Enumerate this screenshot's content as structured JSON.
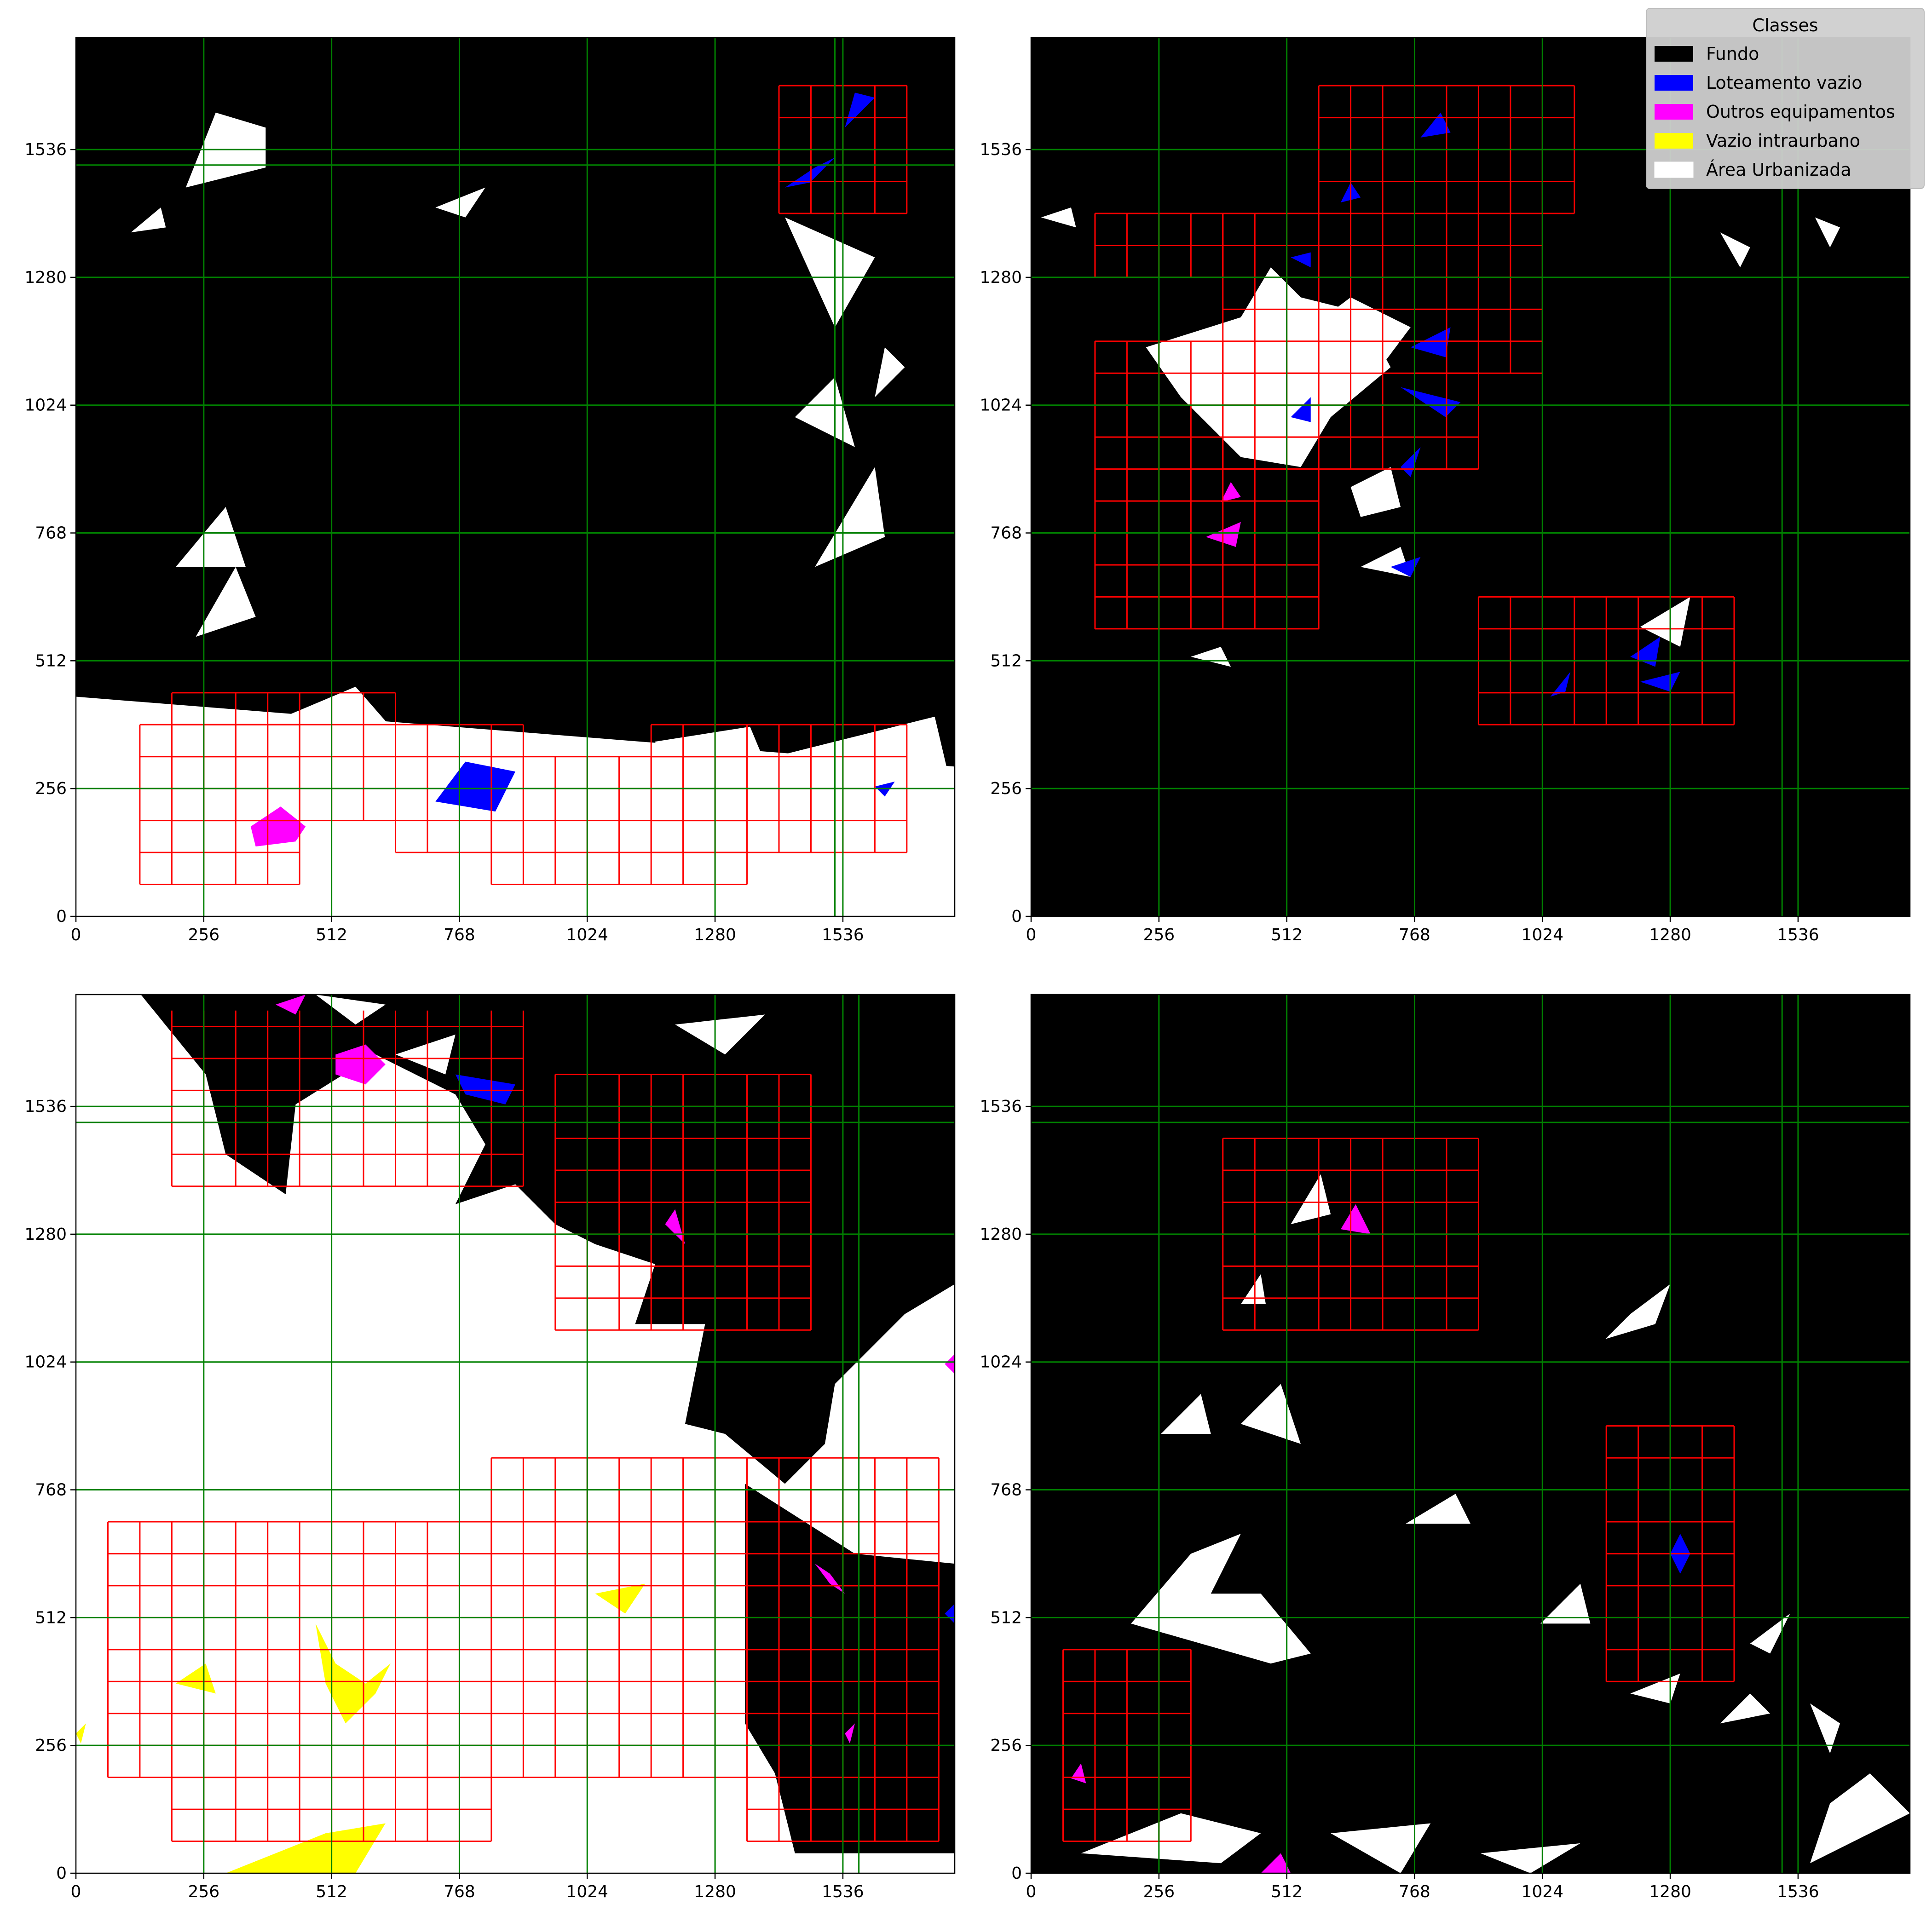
{
  "chart_data": {
    "type": "map",
    "description_free": true,
    "axis": {
      "ticks": [
        0,
        256,
        512,
        768,
        1024,
        1280,
        1536
      ],
      "xlim": [
        0,
        1760
      ],
      "ylim": [
        0,
        1760
      ]
    },
    "legend": {
      "title": "Classes",
      "placement": "top-right",
      "entries": [
        {
          "label": "Fundo",
          "color": "#000000"
        },
        {
          "label": "Loteamento vazio",
          "color": "#0000ff"
        },
        {
          "label": "Outros equipamentos",
          "color": "#ff00ff"
        },
        {
          "label": "Vazio intraurbano",
          "color": "#ffff00"
        },
        {
          "label": "Área Urbanizada",
          "color": "#ffffff"
        }
      ]
    },
    "grid_color": "#008000",
    "tile_color": "#ff0000",
    "panels": [
      {
        "id": "top-left",
        "background": "#000000",
        "green_x": [
          256,
          512,
          768,
          1024,
          1280,
          1520,
          1536
        ],
        "green_y": [
          256,
          512,
          768,
          1024,
          1280,
          1505,
          1536
        ],
        "tiles": [
          [
            128,
            64,
            448,
            384
          ],
          [
            192,
            192,
            640,
            448
          ],
          [
            640,
            128,
            896,
            384
          ],
          [
            832,
            64,
            1088,
            320
          ],
          [
            1088,
            64,
            1344,
            320
          ],
          [
            1152,
            128,
            1664,
            384
          ],
          [
            1408,
            1408,
            1664,
            1664
          ]
        ],
        "urban": [
          [
            0,
            440,
            1760,
            300,
            1760,
            0,
            0,
            0
          ],
          [
            180,
            300,
            560,
            460,
            700,
            300,
            640,
            120,
            300,
            80,
            160,
            180
          ],
          [
            780,
            340,
            1100,
            330,
            1180,
            120,
            860,
            80
          ],
          [
            1160,
            350,
            1350,
            380,
            1450,
            140,
            1220,
            120
          ],
          [
            1400,
            320,
            1720,
            400,
            1760,
            230,
            1500,
            100
          ],
          [
            1480,
            700,
            1600,
            900,
            1620,
            760
          ],
          [
            200,
            700,
            300,
            820,
            340,
            700
          ],
          [
            240,
            560,
            320,
            700,
            360,
            600
          ],
          [
            1420,
            1400,
            1600,
            1320,
            1520,
            1180
          ],
          [
            1440,
            1000,
            1520,
            1080,
            1560,
            940
          ],
          [
            220,
            1460,
            380,
            1500,
            380,
            1580,
            280,
            1610
          ],
          [
            720,
            1420,
            820,
            1460,
            780,
            1400
          ],
          [
            110,
            1370,
            170,
            1420,
            180,
            1380
          ],
          [
            1600,
            1040,
            1660,
            1100,
            1620,
            1140
          ]
        ],
        "vacant_lots": [
          [
            720,
            230,
            780,
            310,
            880,
            290,
            840,
            210
          ],
          [
            1540,
            1580,
            1600,
            1640,
            1560,
            1650
          ],
          [
            1420,
            1460,
            1480,
            1500,
            1520,
            1520,
            1470,
            1470
          ],
          [
            1600,
            260,
            1640,
            270,
            1620,
            240
          ]
        ],
        "other_facilities": [
          [
            360,
            140,
            440,
            150,
            460,
            180,
            410,
            220,
            350,
            180
          ]
        ],
        "intraurban_vacant": []
      },
      {
        "id": "top-right",
        "background": "#000000",
        "green_x": [
          256,
          512,
          768,
          1024,
          1280,
          1504,
          1536
        ],
        "green_y": [
          256,
          512,
          768,
          1024,
          1280,
          1536
        ],
        "tiles": [
          [
            128,
            576,
            576,
            1152
          ],
          [
            384,
            896,
            896,
            1408
          ],
          [
            576,
            1408,
            1088,
            1664
          ],
          [
            768,
            1088,
            1024,
            1472
          ],
          [
            128,
            1280,
            384,
            1408
          ],
          [
            896,
            384,
            1408,
            640
          ]
        ],
        "urban": [
          [
            230,
            1140,
            300,
            1040,
            420,
            920,
            540,
            900,
            600,
            1000,
            720,
            1100,
            660,
            1210,
            540,
            1240,
            480,
            1300,
            420,
            1200
          ],
          [
            560,
            1180,
            640,
            1240,
            760,
            1180,
            700,
            1100,
            620,
            1130
          ],
          [
            640,
            860,
            720,
            900,
            740,
            820,
            660,
            800
          ],
          [
            660,
            700,
            740,
            740,
            760,
            680
          ],
          [
            1220,
            580,
            1320,
            640,
            1300,
            540
          ],
          [
            20,
            1400,
            80,
            1420,
            90,
            1380
          ],
          [
            1380,
            1370,
            1440,
            1340,
            1420,
            1300
          ],
          [
            1570,
            1400,
            1620,
            1380,
            1600,
            1340
          ],
          [
            320,
            520,
            380,
            540,
            400,
            500
          ],
          [
            1500,
            540,
            1540,
            530
          ]
        ],
        "vacant_lots": [
          [
            780,
            1560,
            820,
            1610,
            840,
            1570
          ],
          [
            620,
            1430,
            640,
            1470,
            660,
            1440
          ],
          [
            520,
            1320,
            560,
            1330,
            560,
            1300
          ],
          [
            520,
            1000,
            560,
            1040,
            560,
            990
          ],
          [
            760,
            1140,
            840,
            1180,
            830,
            1120
          ],
          [
            740,
            1060,
            830,
            1000,
            860,
            1030
          ],
          [
            720,
            700,
            780,
            720,
            760,
            680
          ],
          [
            1040,
            440,
            1080,
            490,
            1070,
            450
          ],
          [
            1200,
            520,
            1260,
            560,
            1250,
            500
          ],
          [
            1220,
            470,
            1300,
            490,
            1280,
            450
          ],
          [
            740,
            900,
            780,
            940,
            760,
            880
          ]
        ],
        "other_facilities": [
          [
            350,
            760,
            420,
            790,
            410,
            740
          ],
          [
            380,
            830,
            400,
            870,
            420,
            840
          ],
          [
            800,
            1300,
            820,
            1320
          ]
        ],
        "intraurban_vacant": []
      },
      {
        "id": "bottom-left",
        "background": "#ffffff",
        "green_x": [
          256,
          512,
          768,
          1024,
          1280,
          1536,
          1568
        ],
        "green_y": [
          256,
          512,
          768,
          1024,
          1280,
          1504,
          1536
        ],
        "tiles": [
          [
            64,
            192,
            832,
            704
          ],
          [
            832,
            192,
            1344,
            832
          ],
          [
            192,
            64,
            832,
            192
          ],
          [
            1344,
            64,
            1728,
            832
          ],
          [
            1344,
            576,
            1728,
            832
          ],
          [
            192,
            1376,
            896,
            1728
          ],
          [
            960,
            1088,
            1472,
            1600
          ]
        ],
        "black": [
          [
            130,
            1760,
            260,
            1600,
            300,
            1440,
            420,
            1360,
            440,
            1540,
            600,
            1640,
            760,
            1560,
            820,
            1460,
            760,
            1340,
            880,
            1380,
            960,
            1300,
            1040,
            1260,
            1160,
            1220,
            1120,
            1100,
            1260,
            1100,
            1220,
            900,
            1300,
            880,
            1420,
            780,
            1500,
            860,
            1520,
            980,
            1660,
            1120,
            1760,
            1180,
            1760,
            1760
          ],
          [
            1340,
            780,
            1560,
            640,
            1760,
            620,
            1760,
            40,
            1440,
            40,
            1400,
            200,
            1340,
            300
          ],
          [
            1180,
            1760,
            1440,
            1620,
            1600,
            1700,
            1560,
            1760
          ]
        ],
        "urban": [
          [
            480,
            1760,
            560,
            1700,
            620,
            1740
          ],
          [
            1200,
            1700,
            1300,
            1640,
            1380,
            1720
          ],
          [
            640,
            1640,
            760,
            1680,
            740,
            1600
          ]
        ],
        "vacant_lots": [
          [
            760,
            1600,
            880,
            1580,
            860,
            1540,
            780,
            1560
          ],
          [
            1740,
            520,
            1760,
            540,
            1760,
            500
          ]
        ],
        "other_facilities": [
          [
            520,
            1600,
            580,
            1580,
            620,
            1620,
            580,
            1660,
            520,
            1640
          ],
          [
            400,
            1740,
            460,
            1760,
            440,
            1720
          ],
          [
            1180,
            1300,
            1220,
            1260,
            1200,
            1330
          ],
          [
            1480,
            620,
            1510,
            580,
            1540,
            560,
            1510,
            600
          ],
          [
            1540,
            280,
            1560,
            300,
            1550,
            260
          ],
          [
            1740,
            1020,
            1760,
            1000,
            1760,
            1040
          ]
        ],
        "intraurban_vacant": [
          [
            480,
            500,
            520,
            420,
            580,
            380,
            630,
            420,
            600,
            360,
            540,
            300,
            500,
            380
          ],
          [
            200,
            380,
            260,
            420,
            280,
            360
          ],
          [
            1040,
            560,
            1100,
            520,
            1140,
            580
          ],
          [
            300,
            0,
            500,
            80,
            620,
            100,
            560,
            0
          ],
          [
            0,
            280,
            20,
            300,
            10,
            260
          ]
        ]
      },
      {
        "id": "bottom-right",
        "background": "#000000",
        "green_x": [
          256,
          512,
          768,
          1024,
          1280,
          1536,
          1504
        ],
        "green_y": [
          256,
          512,
          768,
          1024,
          1280,
          1504,
          1536
        ],
        "tiles": [
          [
            384,
            1088,
            896,
            1472
          ],
          [
            1152,
            384,
            1408,
            896
          ],
          [
            64,
            64,
            320,
            448
          ]
        ],
        "urban": [
          [
            200,
            500,
            320,
            640,
            420,
            680,
            360,
            560,
            460,
            560,
            560,
            440,
            480,
            420
          ],
          [
            260,
            880,
            340,
            960,
            360,
            880
          ],
          [
            420,
            900,
            500,
            980,
            540,
            860
          ],
          [
            750,
            700,
            850,
            760,
            880,
            700
          ],
          [
            1020,
            500,
            1100,
            580,
            1120,
            500
          ],
          [
            1200,
            360,
            1300,
            400,
            1280,
            340
          ],
          [
            1380,
            300,
            1440,
            360,
            1480,
            320
          ],
          [
            1440,
            460,
            1520,
            520,
            1480,
            440
          ],
          [
            1560,
            340,
            1620,
            300,
            1600,
            240
          ],
          [
            520,
            1300,
            580,
            1400,
            600,
            1320
          ],
          [
            420,
            1140,
            460,
            1200,
            470,
            1140
          ],
          [
            1150,
            1070,
            1250,
            1100,
            1280,
            1180,
            1200,
            1120
          ],
          [
            100,
            40,
            380,
            20,
            460,
            80,
            300,
            120
          ],
          [
            600,
            80,
            740,
            0,
            800,
            100
          ],
          [
            900,
            40,
            1100,
            60,
            1000,
            0
          ],
          [
            1560,
            20,
            1760,
            120,
            1680,
            200,
            1600,
            140
          ]
        ],
        "vacant_lots": [
          [
            1280,
            640,
            1300,
            600,
            1320,
            640,
            1300,
            680
          ]
        ],
        "other_facilities": [
          [
            620,
            1290,
            650,
            1340,
            680,
            1280
          ],
          [
            80,
            190,
            100,
            220,
            110,
            180
          ],
          [
            460,
            0,
            520,
            0,
            500,
            40
          ]
        ],
        "intraurban_vacant": []
      }
    ]
  }
}
